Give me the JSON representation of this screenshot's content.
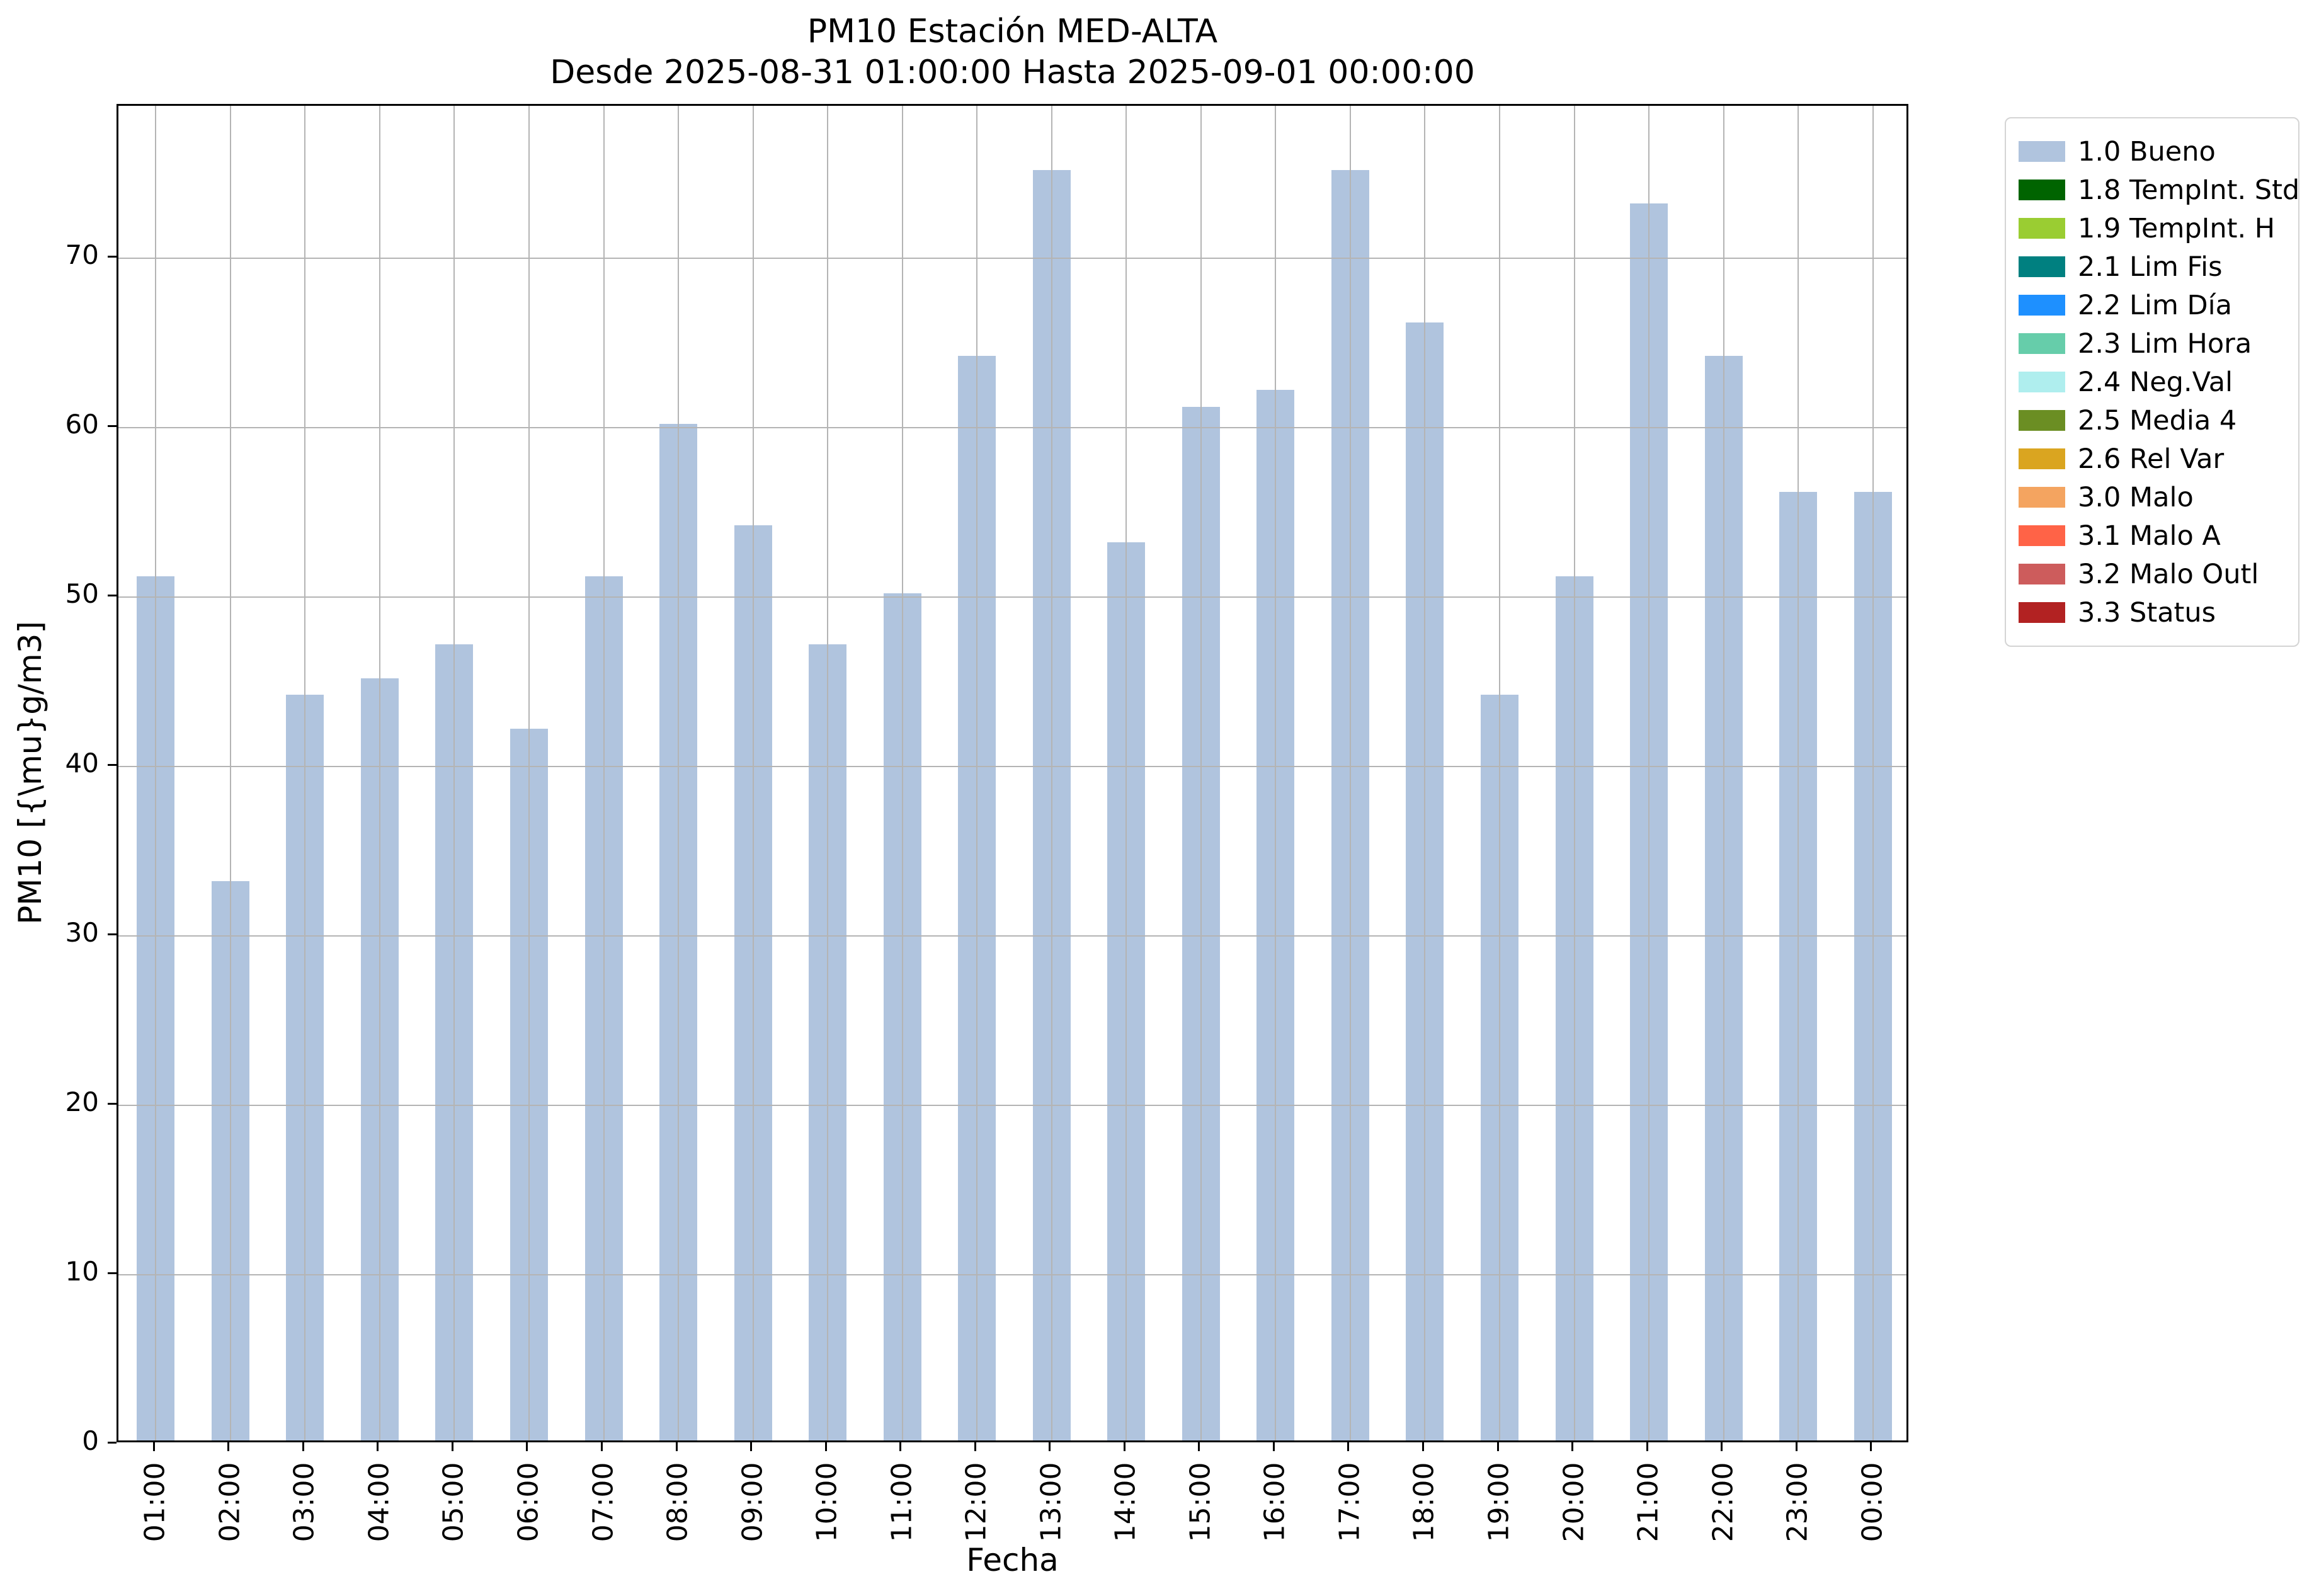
{
  "title": "PM10 Estación MED-ALTA",
  "subtitle": "Desde 2025-08-31 01:00:00 Hasta 2025-09-01 00:00:00",
  "chart_data": {
    "type": "bar",
    "title": "PM10 Estación MED-ALTA",
    "subtitle": "Desde 2025-08-31 01:00:00 Hasta 2025-09-01 00:00:00",
    "categories": [
      "01:00",
      "02:00",
      "03:00",
      "04:00",
      "05:00",
      "06:00",
      "07:00",
      "08:00",
      "09:00",
      "10:00",
      "11:00",
      "12:00",
      "13:00",
      "14:00",
      "15:00",
      "16:00",
      "17:00",
      "18:00",
      "19:00",
      "20:00",
      "21:00",
      "22:00",
      "23:00",
      "00:00"
    ],
    "values": [
      51,
      33,
      44,
      45,
      47,
      42,
      51,
      60,
      54,
      47,
      50,
      64,
      75,
      53,
      61,
      62,
      75,
      66,
      44,
      51,
      73,
      64,
      56,
      56
    ],
    "xlabel": "Fecha",
    "ylabel": "PM10 [{\\mu}g/m3]",
    "ylim": [
      0,
      79
    ],
    "yticks": [
      0,
      10,
      20,
      30,
      40,
      50,
      60,
      70
    ],
    "grid": true,
    "bar_color": "#b0c4de",
    "grid_color": "#b4b4b4",
    "legend_position": "outside upper right",
    "legend": [
      {
        "label": "1.0 Bueno",
        "color": "#b0c4de"
      },
      {
        "label": "1.8 TempInt. Std",
        "color": "#006400"
      },
      {
        "label": "1.9 TempInt. H",
        "color": "#9acd32"
      },
      {
        "label": "2.1 Lim Fis",
        "color": "#008080"
      },
      {
        "label": "2.2 Lim Día",
        "color": "#1e90ff"
      },
      {
        "label": "2.3 Lim Hora",
        "color": "#66cdaa"
      },
      {
        "label": "2.4 Neg.Val",
        "color": "#afeeee"
      },
      {
        "label": "2.5 Media 4",
        "color": "#6b8e23"
      },
      {
        "label": "2.6 Rel Var",
        "color": "#daa520"
      },
      {
        "label": "3.0 Malo",
        "color": "#f4a460"
      },
      {
        "label": "3.1 Malo A",
        "color": "#ff6347"
      },
      {
        "label": "3.2 Malo Outl",
        "color": "#cd5c5c"
      },
      {
        "label": "3.3 Status",
        "color": "#b22222"
      }
    ]
  }
}
